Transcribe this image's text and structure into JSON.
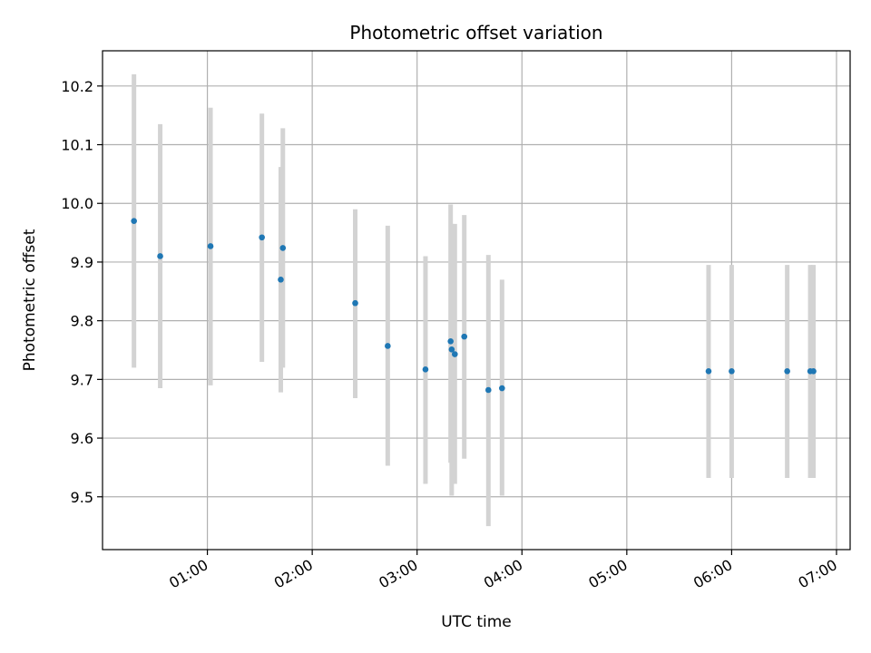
{
  "chart_data": {
    "type": "scatter",
    "title": "Photometric offset variation",
    "xlabel": "UTC time",
    "ylabel": "Photometric offset",
    "x_unit": "UTC hours",
    "xlim": [
      0.0,
      7.13
    ],
    "ylim": [
      9.41,
      10.26
    ],
    "x_ticks": [
      {
        "value": 1,
        "label": "01:00"
      },
      {
        "value": 2,
        "label": "02:00"
      },
      {
        "value": 3,
        "label": "03:00"
      },
      {
        "value": 4,
        "label": "04:00"
      },
      {
        "value": 5,
        "label": "05:00"
      },
      {
        "value": 6,
        "label": "06:00"
      },
      {
        "value": 7,
        "label": "07:00"
      }
    ],
    "y_ticks": [
      {
        "value": 9.5,
        "label": "9.5"
      },
      {
        "value": 9.6,
        "label": "9.6"
      },
      {
        "value": 9.7,
        "label": "9.7"
      },
      {
        "value": 9.8,
        "label": "9.8"
      },
      {
        "value": 9.9,
        "label": "9.9"
      },
      {
        "value": 10.0,
        "label": "10.0"
      },
      {
        "value": 10.1,
        "label": "10.1"
      },
      {
        "value": 10.2,
        "label": "10.2"
      }
    ],
    "grid": true,
    "point_color": "#1f77b4",
    "errorbar_color": "#d3d3d3",
    "points": [
      {
        "x": 0.3,
        "y": 9.97,
        "ylow": 9.72,
        "yhigh": 10.22
      },
      {
        "x": 0.55,
        "y": 9.91,
        "ylow": 9.685,
        "yhigh": 10.135
      },
      {
        "x": 1.03,
        "y": 9.927,
        "ylow": 9.69,
        "yhigh": 10.163
      },
      {
        "x": 1.52,
        "y": 9.942,
        "ylow": 9.73,
        "yhigh": 10.153
      },
      {
        "x": 1.72,
        "y": 9.924,
        "ylow": 9.72,
        "yhigh": 10.128
      },
      {
        "x": 1.7,
        "y": 9.87,
        "ylow": 9.678,
        "yhigh": 10.062
      },
      {
        "x": 2.41,
        "y": 9.83,
        "ylow": 9.668,
        "yhigh": 9.99
      },
      {
        "x": 2.72,
        "y": 9.757,
        "ylow": 9.553,
        "yhigh": 9.962
      },
      {
        "x": 3.08,
        "y": 9.717,
        "ylow": 9.522,
        "yhigh": 9.91
      },
      {
        "x": 3.32,
        "y": 9.765,
        "ylow": 9.558,
        "yhigh": 9.998
      },
      {
        "x": 3.33,
        "y": 9.751,
        "ylow": 9.502,
        "yhigh": 9.965
      },
      {
        "x": 3.36,
        "y": 9.743,
        "ylow": 9.522,
        "yhigh": 9.965
      },
      {
        "x": 3.45,
        "y": 9.773,
        "ylow": 9.565,
        "yhigh": 9.98
      },
      {
        "x": 3.68,
        "y": 9.682,
        "ylow": 9.45,
        "yhigh": 9.912
      },
      {
        "x": 3.81,
        "y": 9.685,
        "ylow": 9.502,
        "yhigh": 9.87
      },
      {
        "x": 5.78,
        "y": 9.714,
        "ylow": 9.532,
        "yhigh": 9.895
      },
      {
        "x": 6.0,
        "y": 9.714,
        "ylow": 9.532,
        "yhigh": 9.895
      },
      {
        "x": 6.53,
        "y": 9.714,
        "ylow": 9.532,
        "yhigh": 9.895
      },
      {
        "x": 6.75,
        "y": 9.714,
        "ylow": 9.532,
        "yhigh": 9.895
      },
      {
        "x": 6.78,
        "y": 9.714,
        "ylow": 9.532,
        "yhigh": 9.895
      }
    ]
  }
}
